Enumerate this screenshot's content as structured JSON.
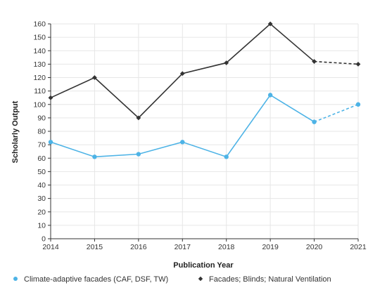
{
  "chart_data": {
    "type": "line",
    "x": [
      "2014",
      "2015",
      "2016",
      "2017",
      "2018",
      "2019",
      "2020",
      "2021"
    ],
    "xlabel": "Publication Year",
    "ylabel": "Scholarly Output",
    "ylim": [
      0,
      160
    ],
    "yticks": [
      0,
      10,
      20,
      30,
      40,
      50,
      60,
      70,
      80,
      90,
      100,
      110,
      120,
      130,
      140,
      150,
      160
    ],
    "grid": true,
    "legend_position": "bottom",
    "series": [
      {
        "name": "Climate-adaptive facades (CAF, DSF, TW)",
        "color": "#4db3e6",
        "marker": "circle",
        "values": [
          72,
          61,
          63,
          72,
          61,
          107,
          87,
          100
        ],
        "dashed_from_index": 6
      },
      {
        "name": "Facades; Blinds; Natural Ventilation",
        "color": "#333333",
        "marker": "diamond",
        "values": [
          105,
          120,
          90,
          123,
          131,
          160,
          132,
          130
        ],
        "dashed_from_index": 6
      }
    ]
  }
}
